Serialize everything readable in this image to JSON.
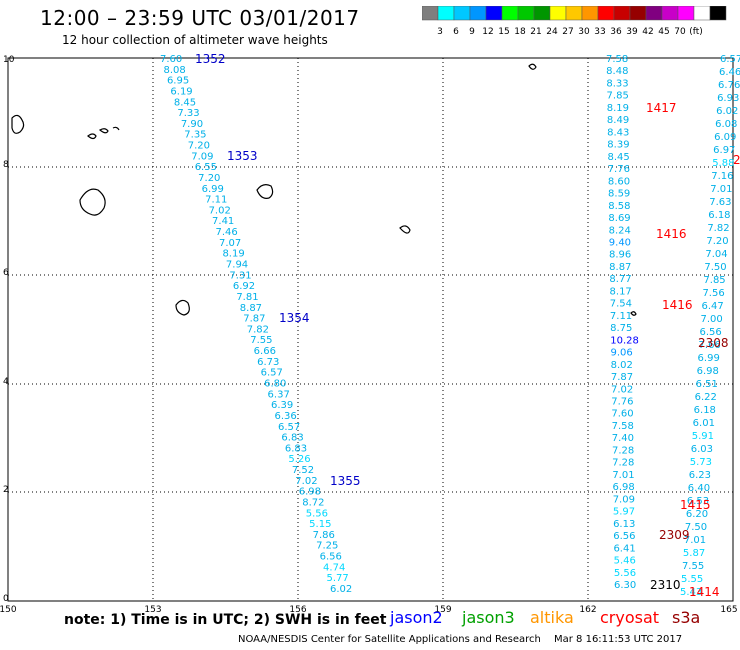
{
  "header": {
    "title": "12:00 – 23:59 UTC 03/01/2017",
    "subtitle": "12 hour collection of altimeter wave heights"
  },
  "colorbar": {
    "colors": [
      "#7f7f7f",
      "#00ffff",
      "#00c8ff",
      "#0096ff",
      "#0000ff",
      "#00ff00",
      "#00c800",
      "#009600",
      "#ffff00",
      "#ffc800",
      "#ff9600",
      "#ff0000",
      "#c80000",
      "#960000",
      "#800080",
      "#c800c8",
      "#ff00ff",
      "#ffffff",
      "#000000"
    ],
    "labels": [
      "3",
      "6",
      "9",
      "12",
      "15",
      "18",
      "21",
      "24",
      "27",
      "30",
      "33",
      "36",
      "39",
      "42",
      "45",
      "70",
      "(ft)"
    ]
  },
  "axes": {
    "x_ticks": [
      "150",
      "153",
      "156",
      "159",
      "162",
      "165"
    ],
    "y_ticks": [
      "0",
      "2",
      "4",
      "6",
      "8",
      "10"
    ]
  },
  "passes": {
    "pass_1352": "1352",
    "pass_1353": "1353",
    "pass_1354": "1354",
    "pass_1355": "1355",
    "pass_1417": "1417",
    "pass_1416a": "1416",
    "pass_1416b": "1416",
    "pass_2308": "2308",
    "pass_1415": "1415",
    "pass_2309": "2309",
    "pass_2310": "2310",
    "pass_1414": "1414",
    "pass_edge": "2"
  },
  "tracks": {
    "track_a": [
      "7.60",
      "8.08",
      "6.95",
      "6.19",
      "8.45",
      "7.33",
      "7.90",
      "7.35",
      "7.20",
      "7.09",
      "6.55",
      "7.20",
      "6.99",
      "7.11",
      "7.02",
      "7.41",
      "7.46",
      "7.07",
      "8.19",
      "7.94",
      "7.31",
      "6.92",
      "7.81",
      "8.87",
      "7.87",
      "7.82",
      "7.55",
      "6.66",
      "6.73",
      "6.57",
      "6.80",
      "6.37",
      "6.39",
      "6.36",
      "6.57",
      "6.83",
      "6.83",
      "5.26",
      "7.52",
      "7.02",
      "6.98",
      "8.72",
      "5.56",
      "5.15",
      "7.86",
      "7.25",
      "6.56",
      "4.74",
      "5.77",
      "6.02"
    ],
    "track_b": [
      "7.58",
      "8.48",
      "8.33",
      "7.85",
      "8.19",
      "8.49",
      "8.43",
      "8.39",
      "8.45",
      "7.76",
      "8.60",
      "8.59",
      "8.58",
      "8.69",
      "8.24",
      "9.40",
      "8.96",
      "8.87",
      "8.77",
      "8.17",
      "7.54",
      "7.11",
      "8.75",
      "10.28",
      "9.06",
      "8.02",
      "7.87",
      "7.02",
      "7.76",
      "7.60",
      "7.58",
      "7.40",
      "7.28",
      "7.28",
      "7.01",
      "6.98",
      "7.09",
      "5.97",
      "6.13",
      "6.56",
      "6.41",
      "5.46",
      "5.56",
      "6.30"
    ],
    "track_c": [
      "6.57",
      "6.46",
      "6.76",
      "6.93",
      "6.02",
      "6.08",
      "6.09",
      "6.97",
      "5.88",
      "7.16",
      "7.01",
      "7.63",
      "6.18",
      "7.82",
      "7.20",
      "7.04",
      "7.50",
      "7.85",
      "7.56",
      "6.47",
      "7.00",
      "6.56",
      "7.66",
      "6.99",
      "6.98",
      "6.51",
      "6.22",
      "6.18",
      "6.01",
      "5.91",
      "6.03",
      "5.73",
      "6.23",
      "6.40",
      "6.53",
      "6.20",
      "7.50",
      "7.01",
      "5.87",
      "7.55",
      "5.55",
      "5.43"
    ]
  },
  "legend": {
    "note": "note: 1) Time is in UTC; 2) SWH is in feet",
    "jason2": "jason2",
    "jason3": "jason3",
    "altika": "altika",
    "cryosat": "cryosat",
    "s3a": "s3a",
    "credit": "NOAA/NESDIS Center for Satellite Applications and Research",
    "stamp": "Mar  8 16:11:53 UTC 2017"
  }
}
